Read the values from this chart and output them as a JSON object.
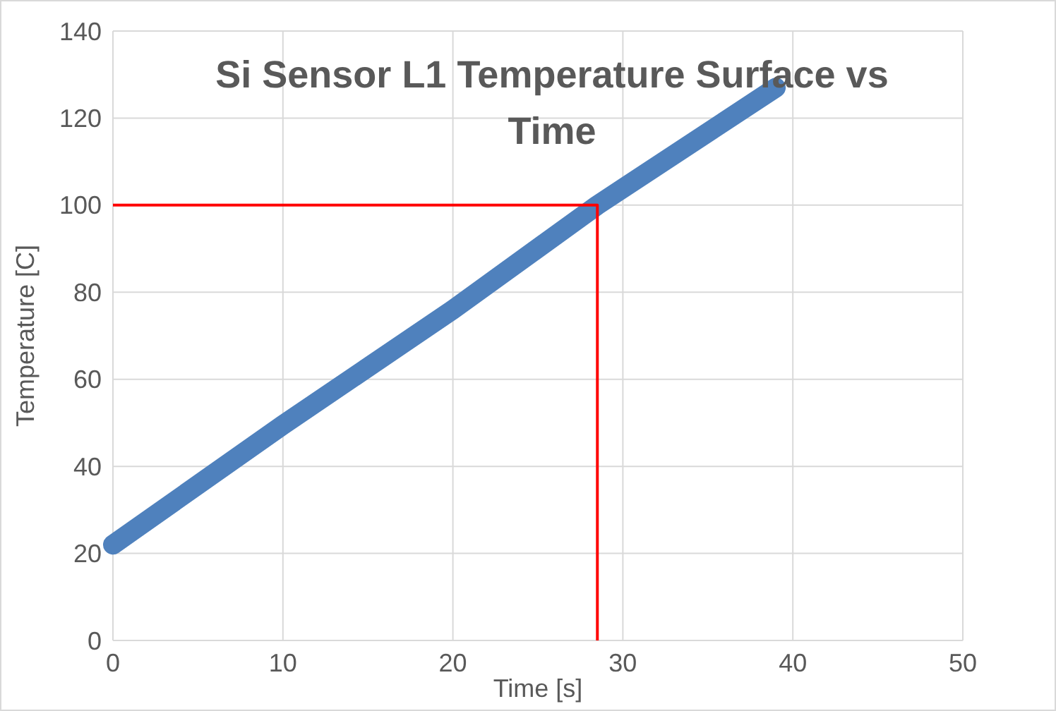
{
  "chart_data": {
    "type": "line",
    "title": "Si Sensor L1 Temperature Surface vs Time",
    "xlabel": "Time [s]",
    "ylabel": "Temperature [C]",
    "xlim": [
      0,
      50
    ],
    "xticks": [
      0,
      10,
      20,
      30,
      40,
      50
    ],
    "ylim": [
      0,
      140
    ],
    "yticks": [
      0,
      20,
      40,
      60,
      80,
      100,
      120,
      140
    ],
    "grid": true,
    "marker": "none",
    "line_style": "solid",
    "series": [
      {
        "color": "#4f81bd",
        "x": [
          0,
          10,
          20,
          28.5,
          39
        ],
        "values": [
          22,
          49.5,
          76,
          100,
          127
        ]
      },
      {
        "color": "#ff0000",
        "x": [
          0,
          28.5,
          28.5
        ],
        "values": [
          100,
          100,
          0
        ]
      }
    ]
  }
}
